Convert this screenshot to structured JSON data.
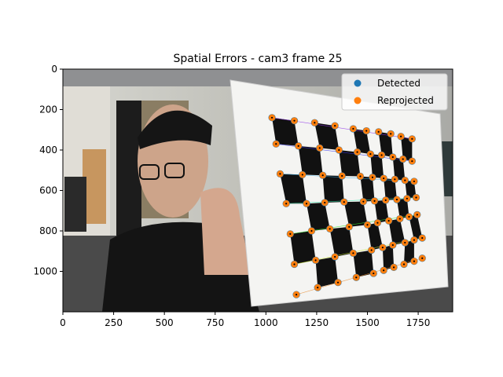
{
  "chart_data": {
    "type": "scatter",
    "title": "Spatial Errors - cam3 frame 25",
    "xlabel": "",
    "ylabel": "",
    "xlim": [
      0,
      1920
    ],
    "ylim": [
      1200,
      0
    ],
    "y_inverted": true,
    "x_ticks": [
      0,
      250,
      500,
      750,
      1000,
      1250,
      1500,
      1750
    ],
    "x_tick_labels": [
      "0",
      "250",
      "500",
      "750",
      "1000",
      "1250",
      "1500",
      "1750"
    ],
    "y_ticks": [
      0,
      200,
      400,
      600,
      800,
      1000
    ],
    "y_tick_labels": [
      "0",
      "200",
      "400",
      "600",
      "800",
      "1000"
    ],
    "grid": false,
    "background": "photograph of a person holding a checkerboard calibration target",
    "legend": {
      "placement": "top-right",
      "entries": [
        "Detected",
        "Reprojected"
      ]
    },
    "series": [
      {
        "name": "Detected",
        "color": "#1f77b4",
        "marker": "circle"
      },
      {
        "name": "Reprojected",
        "color": "#ff7f0e",
        "marker": "circle"
      }
    ],
    "points": [
      [
        1030,
        240
      ],
      [
        1140,
        255
      ],
      [
        1240,
        265
      ],
      [
        1340,
        280
      ],
      [
        1430,
        295
      ],
      [
        1495,
        305
      ],
      [
        1555,
        310
      ],
      [
        1615,
        320
      ],
      [
        1665,
        333
      ],
      [
        1720,
        345
      ],
      [
        1050,
        370
      ],
      [
        1160,
        380
      ],
      [
        1265,
        390
      ],
      [
        1360,
        400
      ],
      [
        1450,
        410
      ],
      [
        1515,
        420
      ],
      [
        1570,
        425
      ],
      [
        1625,
        435
      ],
      [
        1675,
        445
      ],
      [
        1720,
        455
      ],
      [
        1070,
        518
      ],
      [
        1180,
        522
      ],
      [
        1280,
        525
      ],
      [
        1375,
        528
      ],
      [
        1465,
        530
      ],
      [
        1525,
        535
      ],
      [
        1580,
        540
      ],
      [
        1635,
        545
      ],
      [
        1685,
        550
      ],
      [
        1730,
        555
      ],
      [
        1100,
        665
      ],
      [
        1200,
        665
      ],
      [
        1290,
        660
      ],
      [
        1385,
        657
      ],
      [
        1480,
        655
      ],
      [
        1535,
        652
      ],
      [
        1590,
        648
      ],
      [
        1645,
        645
      ],
      [
        1695,
        640
      ],
      [
        1740,
        635
      ],
      [
        1120,
        815
      ],
      [
        1225,
        800
      ],
      [
        1315,
        790
      ],
      [
        1410,
        780
      ],
      [
        1500,
        770
      ],
      [
        1550,
        760
      ],
      [
        1605,
        750
      ],
      [
        1660,
        740
      ],
      [
        1705,
        730
      ],
      [
        1745,
        720
      ],
      [
        1140,
        965
      ],
      [
        1245,
        945
      ],
      [
        1340,
        928
      ],
      [
        1430,
        910
      ],
      [
        1520,
        895
      ],
      [
        1575,
        882
      ],
      [
        1625,
        870
      ],
      [
        1685,
        858
      ],
      [
        1730,
        845
      ],
      [
        1770,
        835
      ],
      [
        1150,
        1115
      ],
      [
        1255,
        1080
      ],
      [
        1355,
        1055
      ],
      [
        1445,
        1030
      ],
      [
        1530,
        1010
      ],
      [
        1580,
        995
      ],
      [
        1630,
        980
      ],
      [
        1680,
        965
      ],
      [
        1730,
        950
      ],
      [
        1770,
        935
      ]
    ]
  },
  "colors": {
    "detected": "#1f77b4",
    "reprojected": "#ff7f0e"
  }
}
